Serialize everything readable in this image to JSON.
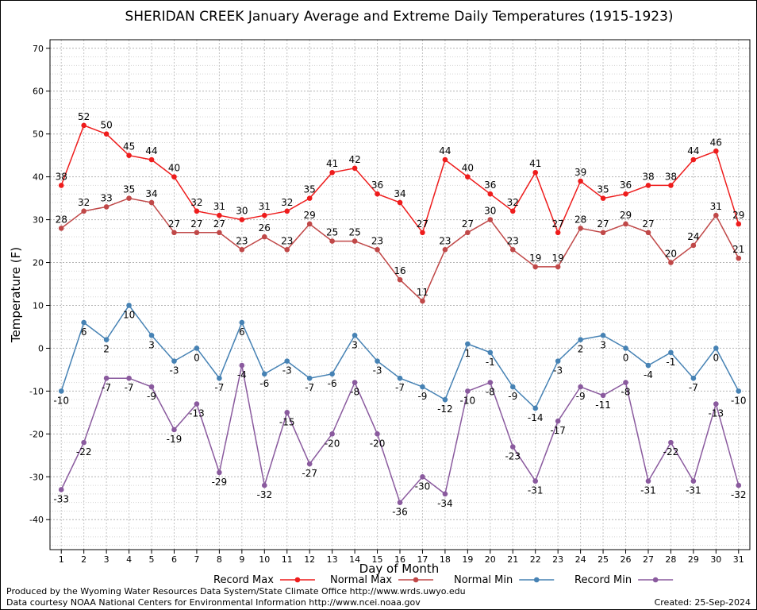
{
  "chart_data": {
    "type": "line",
    "title": "SHERIDAN CREEK January Average and Extreme Daily Temperatures (1915-1923)",
    "xlabel": "Day of Month",
    "ylabel": "Temperature (F)",
    "ylim": [
      -47,
      72
    ],
    "yticks": [
      -40,
      -30,
      -20,
      -10,
      0,
      10,
      20,
      30,
      40,
      50,
      60,
      70
    ],
    "x": [
      1,
      2,
      3,
      4,
      5,
      6,
      7,
      8,
      9,
      10,
      11,
      12,
      13,
      14,
      15,
      16,
      17,
      18,
      19,
      20,
      21,
      22,
      23,
      24,
      25,
      26,
      27,
      28,
      29,
      30,
      31
    ],
    "grid": true,
    "legend_position": "bottom",
    "series": [
      {
        "name": "Record Max",
        "color": "#ee1c1c",
        "label_pos": "above",
        "values": [
          38,
          52,
          50,
          45,
          44,
          40,
          32,
          31,
          30,
          31,
          32,
          35,
          41,
          42,
          36,
          34,
          27,
          44,
          40,
          36,
          32,
          41,
          27,
          39,
          35,
          36,
          38,
          38,
          44,
          46,
          29
        ]
      },
      {
        "name": "Normal Max",
        "color": "#c04848",
        "label_pos": "above",
        "values": [
          28,
          32,
          33,
          35,
          34,
          27,
          27,
          27,
          23,
          26,
          23,
          29,
          25,
          25,
          23,
          16,
          11,
          23,
          27,
          30,
          23,
          19,
          19,
          28,
          27,
          29,
          27,
          20,
          24,
          31,
          21
        ]
      },
      {
        "name": "Normal Min",
        "color": "#4682b4",
        "label_pos": "below",
        "values": [
          -10,
          6,
          2,
          10,
          3,
          -3,
          0,
          -7,
          6,
          -6,
          -3,
          -7,
          -6,
          3,
          -3,
          -7,
          -9,
          -12,
          1,
          -1,
          -9,
          -14,
          -3,
          2,
          3,
          0,
          -4,
          -1,
          -7,
          0,
          -10
        ]
      },
      {
        "name": "Record Min",
        "color": "#8a5a9e",
        "label_pos": "below",
        "values": [
          -33,
          -22,
          -7,
          -7,
          -9,
          -19,
          -13,
          -29,
          -4,
          -32,
          -15,
          -27,
          -20,
          -8,
          -20,
          -36,
          -30,
          -34,
          -10,
          -8,
          -23,
          -31,
          -17,
          -9,
          -11,
          -8,
          -31,
          -22,
          -31,
          -13,
          -32
        ]
      }
    ]
  },
  "footer": {
    "credit_line1": "Produced by the Wyoming Water Resources Data System/State Climate Office http://www.wrds.uwyo.edu",
    "credit_line2": "Data courtesy NOAA National Centers for Environmental Information http://www.ncei.noaa.gov",
    "created": "Created:  25-Sep-2024"
  }
}
